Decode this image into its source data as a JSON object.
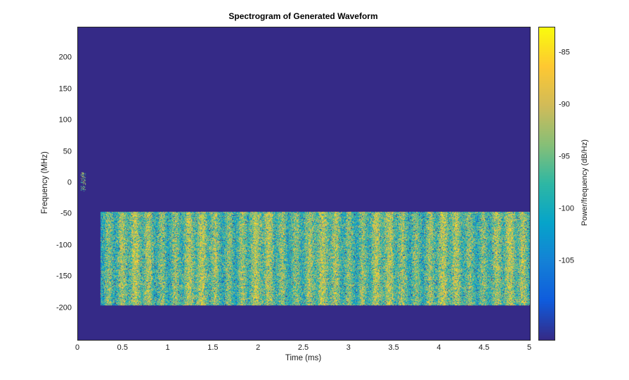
{
  "figure": {
    "background": "#ffffff",
    "axes_color": "#262626",
    "text_color": "#1a1a1a"
  },
  "chart_data": {
    "type": "heatmap",
    "subtype": "spectrogram",
    "title": "Spectrogram of Generated Waveform",
    "xlabel": "Time (ms)",
    "ylabel": "Frequency (MHz)",
    "colorbar_label": "Power/frequency (dB/Hz)",
    "xlim": [
      0,
      5
    ],
    "ylim": [
      -250,
      250
    ],
    "clim": [
      -112.5,
      -82.5
    ],
    "x_ticks": [
      0,
      0.5,
      1,
      1.5,
      2,
      2.5,
      3,
      3.5,
      4,
      4.5,
      5
    ],
    "x_tick_labels": [
      "0",
      "0.5",
      "1",
      "1.5",
      "2",
      "2.5",
      "3",
      "3.5",
      "4",
      "4.5",
      "5"
    ],
    "y_ticks": [
      200,
      150,
      100,
      50,
      0,
      -50,
      -100,
      -150,
      -200
    ],
    "y_tick_labels": [
      "200",
      "150",
      "100",
      "50",
      "0",
      "-50",
      "-100",
      "-150",
      "-200"
    ],
    "colorbar_ticks": [
      -85,
      -90,
      -95,
      -100,
      -105
    ],
    "colorbar_tick_labels": [
      "-85",
      "-90",
      "-95",
      "-100",
      "-105"
    ],
    "grid": false,
    "legend": "none",
    "colormap": "parula",
    "colormap_stops": [
      "#352a87",
      "#0f5cdd",
      "#1481d6",
      "#06a4ca",
      "#2eb7a4",
      "#87bf77",
      "#d1bb59",
      "#fec832",
      "#f9fb0e"
    ],
    "background_db": -112.5,
    "regions": [
      {
        "name": "noise-band",
        "t": [
          0.25,
          5.0
        ],
        "f": [
          -195,
          -45
        ],
        "db_mean": -95,
        "db_spread": 7,
        "description": "dense speckled green/yellow noise band with faint vertical striping and scattered blue/cyan specks"
      },
      {
        "name": "origin-burst",
        "t": [
          0.03,
          0.08
        ],
        "f": [
          -12,
          18
        ],
        "db_mean": -96,
        "db_spread": 5,
        "description": "small sparse cluster of green speckles near 0 MHz at the start of the record"
      }
    ]
  }
}
